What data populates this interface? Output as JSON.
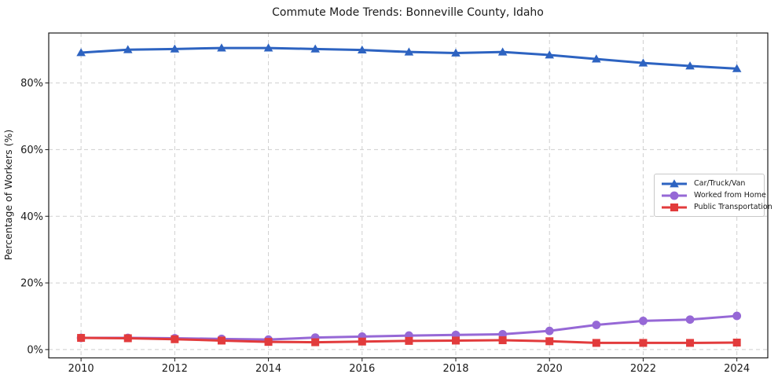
{
  "title": "Commute Mode Trends: Bonneville County, Idaho",
  "chart_data": {
    "type": "line",
    "title": "Commute Mode Trends: Bonneville County, Idaho",
    "xlabel": "",
    "ylabel": "Percentage of Workers (%)",
    "grid": true,
    "grid_style": "dashed",
    "legend_position": "center-right",
    "x": [
      2010,
      2011,
      2012,
      2013,
      2014,
      2015,
      2016,
      2017,
      2018,
      2019,
      2020,
      2021,
      2022,
      2023,
      2024
    ],
    "series": [
      {
        "name": "Car/Truck/Van",
        "color": "#2d63c1",
        "marker": "triangle",
        "values": [
          89.1,
          90.0,
          90.2,
          90.5,
          90.5,
          90.2,
          89.9,
          89.3,
          89.0,
          89.3,
          88.4,
          87.2,
          86.0,
          85.1,
          84.3
        ]
      },
      {
        "name": "Worked from Home",
        "color": "#9668d6",
        "marker": "circle",
        "values": [
          3.5,
          3.5,
          3.4,
          3.2,
          3.0,
          3.6,
          3.9,
          4.2,
          4.4,
          4.6,
          5.6,
          7.4,
          8.6,
          9.0,
          10.1
        ]
      },
      {
        "name": "Public Transportation",
        "color": "#e23b3c",
        "marker": "square",
        "values": [
          3.5,
          3.4,
          3.1,
          2.7,
          2.3,
          2.2,
          2.4,
          2.6,
          2.7,
          2.8,
          2.5,
          2.0,
          2.0,
          2.0,
          2.1
        ]
      }
    ],
    "xticks": [
      2010,
      2012,
      2014,
      2016,
      2018,
      2020,
      2022,
      2024
    ],
    "ytick_values": [
      0,
      20,
      40,
      60,
      80
    ],
    "ytick_labels": [
      "0%",
      "20%",
      "40%",
      "60%",
      "80%"
    ],
    "xlim": [
      2009.31,
      2024.66
    ],
    "ylim": [
      -2.5,
      95
    ],
    "colors": {
      "spine": "#1a1a1a",
      "grid": "#cfcfcf",
      "text": "#1a1a1a",
      "background": "#ffffff",
      "legend_border": "#c8c8c8"
    }
  }
}
